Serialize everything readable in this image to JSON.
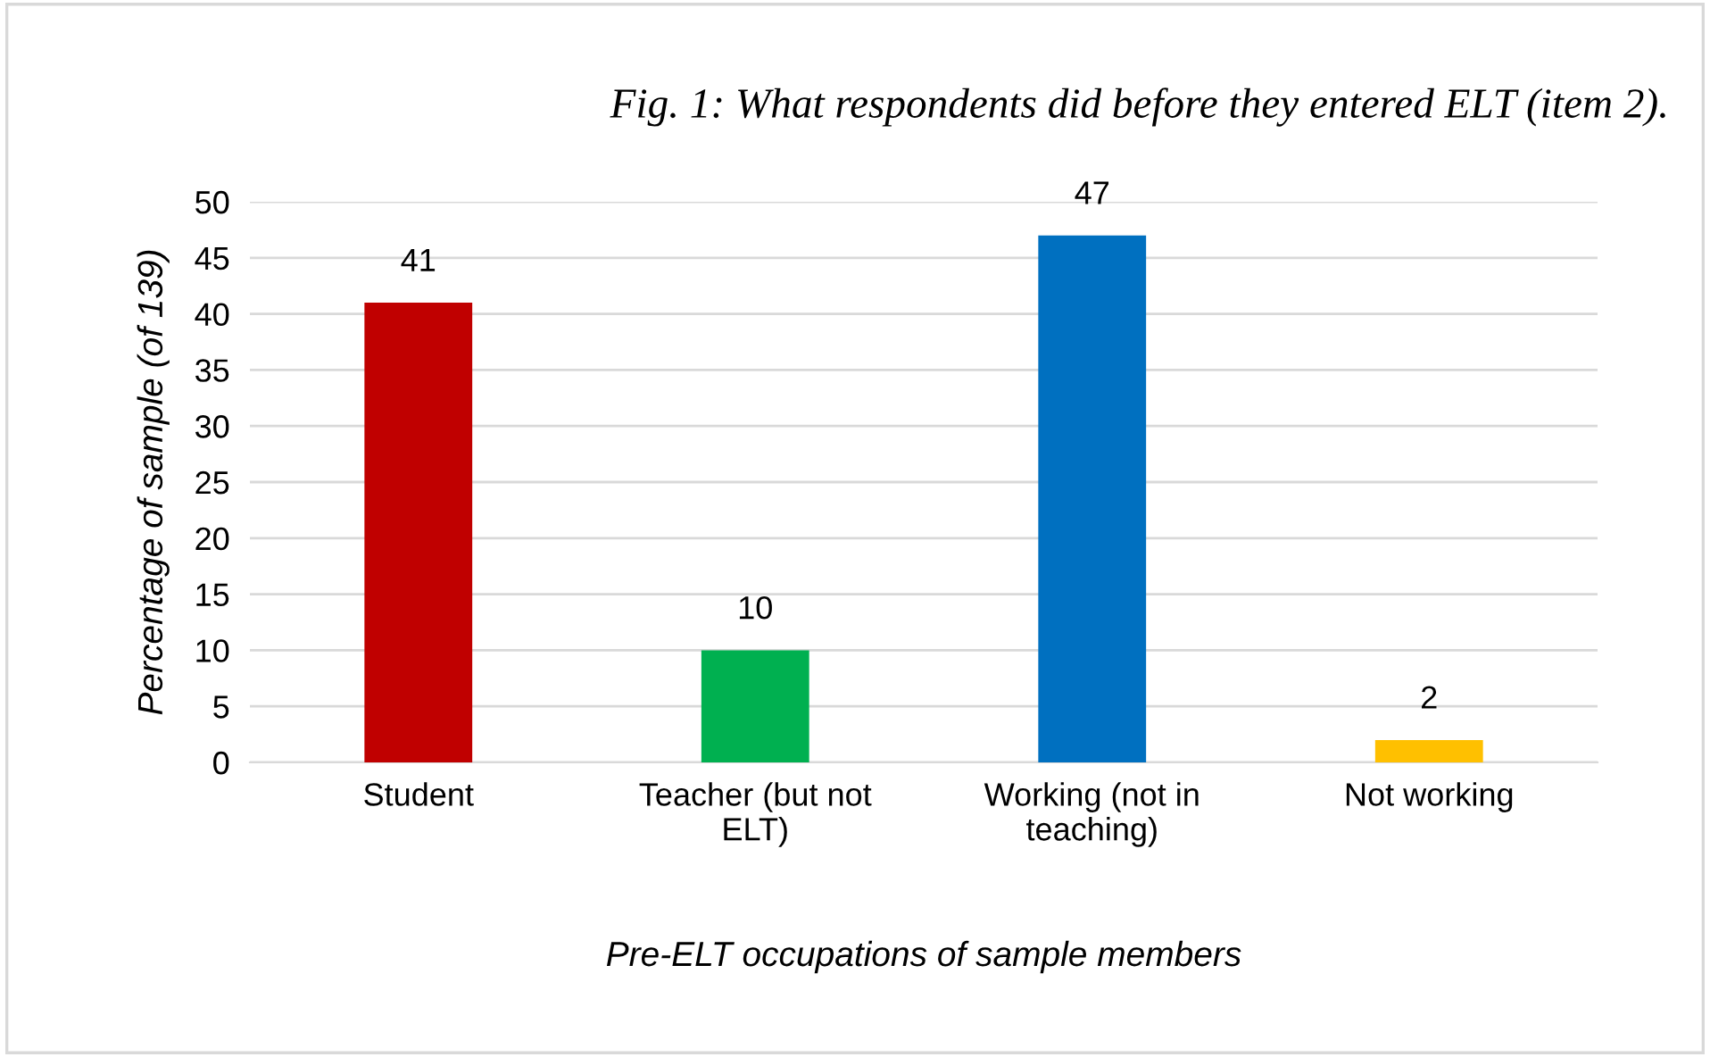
{
  "chart_data": {
    "type": "bar",
    "title": "Fig. 1: What respondents did before they entered ELT (item 2).",
    "xlabel": "Pre-ELT occupations of sample members",
    "ylabel": "Percentage of sample (of 139)",
    "categories": [
      "Student",
      "Teacher (but not ELT)",
      "Working (not in teaching)",
      "Not working"
    ],
    "values": [
      41,
      10,
      47,
      2
    ],
    "colors": [
      "#c00000",
      "#00b050",
      "#0070c0",
      "#ffc000"
    ],
    "ylim": [
      0,
      50
    ],
    "yticks": [
      0,
      5,
      10,
      15,
      20,
      25,
      30,
      35,
      40,
      45,
      50
    ],
    "grid": "y",
    "data_labels": true
  }
}
